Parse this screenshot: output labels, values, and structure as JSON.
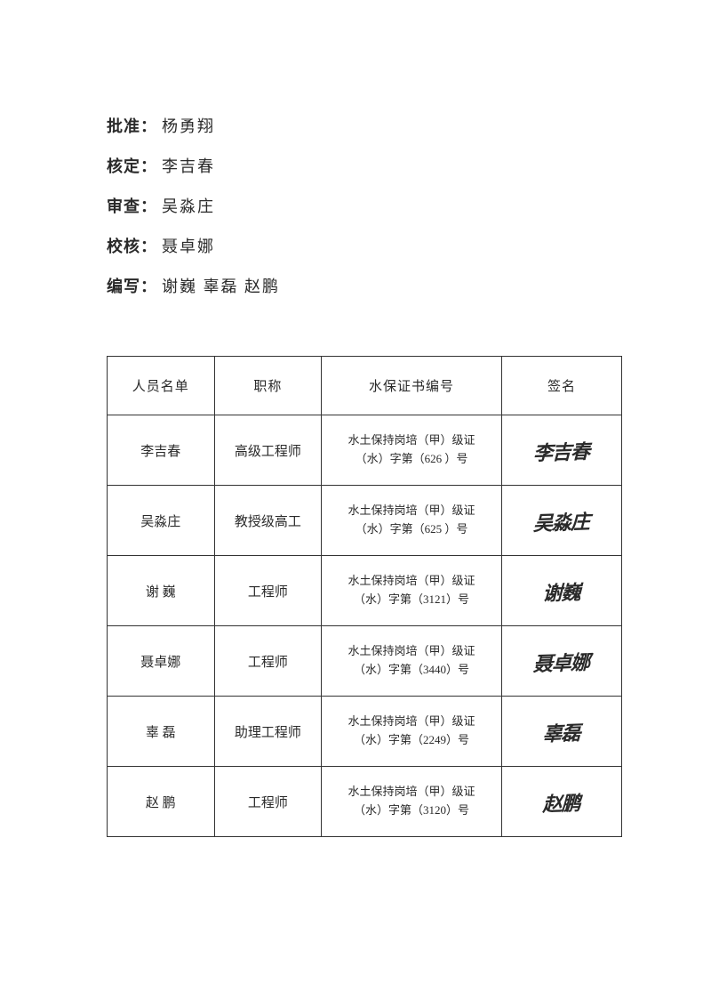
{
  "roles": [
    {
      "label": "批准：",
      "value": "杨勇翔"
    },
    {
      "label": "核定：",
      "value": "李吉春"
    },
    {
      "label": "审查：",
      "value": "吴淼庄"
    },
    {
      "label": "校核：",
      "value": "聂卓娜"
    },
    {
      "label": "编写：",
      "value": "谢巍  辜磊  赵鹏"
    }
  ],
  "table": {
    "headers": [
      "人员名单",
      "职称",
      "水保证书编号",
      "签名"
    ],
    "rows": [
      {
        "name": "李吉春",
        "title": "高级工程师",
        "cert_line1": "水土保持岗培（甲）级证",
        "cert_line2": "（水）字第（626 ）号",
        "sign": "李吉春"
      },
      {
        "name": "吴淼庄",
        "title": "教授级高工",
        "cert_line1": "水土保持岗培（甲）级证",
        "cert_line2": "（水）字第（625 ）号",
        "sign": "吴淼庄"
      },
      {
        "name": "谢  巍",
        "title": "工程师",
        "cert_line1": "水土保持岗培（甲）级证",
        "cert_line2": "（水）字第（3121）号",
        "sign": "谢巍"
      },
      {
        "name": "聂卓娜",
        "title": "工程师",
        "cert_line1": "水土保持岗培（甲）级证",
        "cert_line2": "（水）字第（3440）号",
        "sign": "聂卓娜"
      },
      {
        "name": "辜  磊",
        "title": "助理工程师",
        "cert_line1": "水土保持岗培（甲）级证",
        "cert_line2": "（水）字第（2249）号",
        "sign": "辜磊"
      },
      {
        "name": "赵  鹏",
        "title": "工程师",
        "cert_line1": "水土保持岗培（甲）级证",
        "cert_line2": "（水）字第（3120）号",
        "sign": "赵鹏"
      }
    ]
  }
}
